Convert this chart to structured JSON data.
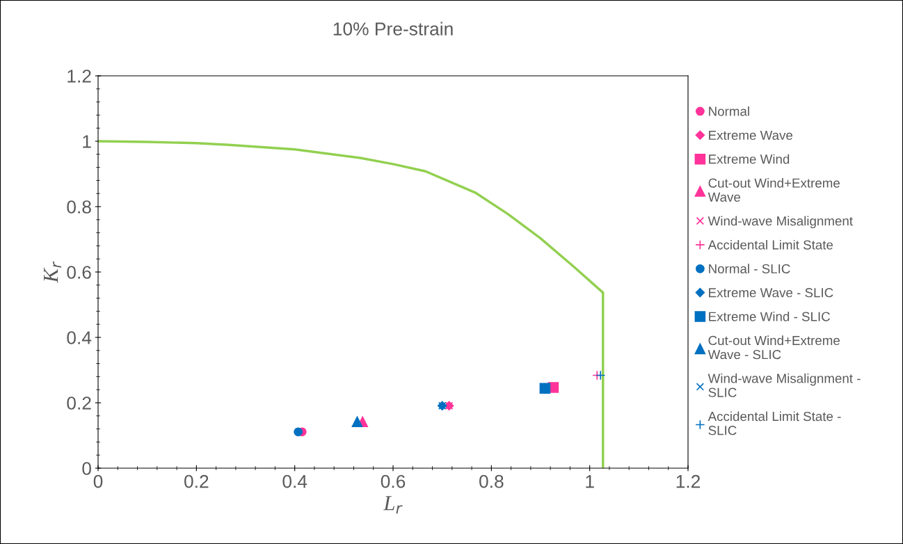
{
  "chart_data": {
    "type": "scatter",
    "title": "10% Pre-strain",
    "xlabel": "L$_{r}$",
    "ylabel": "K$_{r}$",
    "xlim": [
      0,
      1.2
    ],
    "ylim": [
      0,
      1.2
    ],
    "xticks": [
      0,
      0.2,
      0.4,
      0.6,
      0.8,
      1,
      1.2
    ],
    "yticks": [
      0,
      0.2,
      0.4,
      0.6,
      0.8,
      1,
      1.2
    ],
    "grid": false,
    "legend": "right",
    "series": [
      {
        "type": "line",
        "color": "#92d050",
        "marker": "none",
        "line_style": "solid",
        "x": [
          0,
          0.1,
          0.2,
          0.266,
          0.4,
          0.533,
          0.6,
          0.666,
          0.767,
          0.833,
          0.9,
          0.967,
          1.027,
          1.027
        ],
        "values": [
          1.0,
          0.998,
          0.994,
          0.989,
          0.975,
          0.949,
          0.93,
          0.908,
          0.843,
          0.778,
          0.703,
          0.617,
          0.537,
          0
        ]
      },
      {
        "name": "Normal",
        "color": "#ff3399",
        "marker": "circle",
        "x": [
          0.415
        ],
        "values": [
          0.111
        ]
      },
      {
        "name": "Extreme Wave",
        "color": "#ff3399",
        "marker": "diamond",
        "x": [
          0.714
        ],
        "values": [
          0.191
        ]
      },
      {
        "name": "Extreme Wind",
        "color": "#ff3399",
        "marker": "square",
        "x": [
          0.926
        ],
        "values": [
          0.247
        ]
      },
      {
        "name": "Cut-out Wind+Extreme Wave",
        "color": "#ff3399",
        "marker": "triangle",
        "x": [
          0.538
        ],
        "values": [
          0.142
        ]
      },
      {
        "name": "Wind-wave Misalignment",
        "color": "#ff3399",
        "marker": "cross",
        "x": [
          0.714
        ],
        "values": [
          0.191
        ]
      },
      {
        "name": "Accidental Limit State",
        "color": "#ff3399",
        "marker": "plus",
        "x": [
          1.015
        ],
        "values": [
          0.284
        ]
      },
      {
        "name": "Normal - SLIC",
        "color": "#0070c0",
        "marker": "circle",
        "x": [
          0.407
        ],
        "values": [
          0.111
        ]
      },
      {
        "name": "Extreme Wave - SLIC",
        "color": "#0070c0",
        "marker": "diamond",
        "x": [
          0.7
        ],
        "values": [
          0.191
        ]
      },
      {
        "name": "Extreme Wind - SLIC",
        "color": "#0070c0",
        "marker": "square",
        "x": [
          0.909
        ],
        "values": [
          0.244
        ]
      },
      {
        "name": "Cut-out Wind+Extreme Wave - SLIC",
        "color": "#0070c0",
        "marker": "triangle",
        "x": [
          0.527
        ],
        "values": [
          0.142
        ]
      },
      {
        "name": "Wind-wave Misalignment - SLIC",
        "color": "#0070c0",
        "marker": "cross",
        "x": [
          0.7
        ],
        "values": [
          0.191
        ]
      },
      {
        "name": "Accidental Limit State - SLIC",
        "color": "#0070c0",
        "marker": "plus",
        "x": [
          1.022
        ],
        "values": [
          0.284
        ]
      }
    ]
  }
}
